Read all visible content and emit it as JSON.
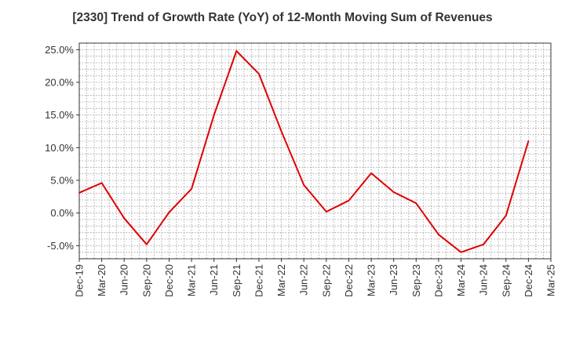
{
  "chart_data": {
    "type": "line",
    "title": "[2330]  Trend of Growth Rate (YoY) of 12-Month Moving Sum of Revenues",
    "xlabel": "",
    "ylabel": "",
    "x_tick_labels": [
      "Dec-19",
      "Mar-20",
      "Jun-20",
      "Sep-20",
      "Dec-20",
      "Mar-21",
      "Jun-21",
      "Sep-21",
      "Dec-21",
      "Mar-22",
      "Jun-22",
      "Sep-22",
      "Dec-22",
      "Mar-23",
      "Jun-23",
      "Sep-23",
      "Dec-23",
      "Mar-24",
      "Jun-24",
      "Sep-24",
      "Dec-24",
      "Mar-25"
    ],
    "y_tick_values": [
      25,
      20,
      15,
      10,
      5,
      0,
      -5
    ],
    "y_tick_labels": [
      "25.0%",
      "20.0%",
      "15.0%",
      "10.0%",
      "5.0%",
      "0.0%",
      "-5.0%"
    ],
    "ylim": [
      -7,
      26
    ],
    "grid": true,
    "line_color": "#e00000",
    "series": [
      {
        "x": [
          "Dec-19",
          "Mar-20",
          "Jun-20",
          "Sep-20",
          "Dec-20",
          "Mar-21",
          "Jun-21",
          "Sep-21",
          "Dec-21",
          "Mar-22",
          "Jun-22",
          "Sep-22",
          "Dec-22",
          "Mar-23",
          "Jun-23",
          "Sep-23",
          "Dec-23",
          "Mar-24",
          "Jun-24",
          "Sep-24",
          "Dec-24"
        ],
        "values": [
          3.1,
          4.6,
          -0.8,
          -4.8,
          0.1,
          3.7,
          15.0,
          24.8,
          21.3,
          12.5,
          4.3,
          0.2,
          1.9,
          6.1,
          3.2,
          1.5,
          -3.3,
          -6.0,
          -4.8,
          -0.4,
          11.0
        ]
      }
    ]
  }
}
